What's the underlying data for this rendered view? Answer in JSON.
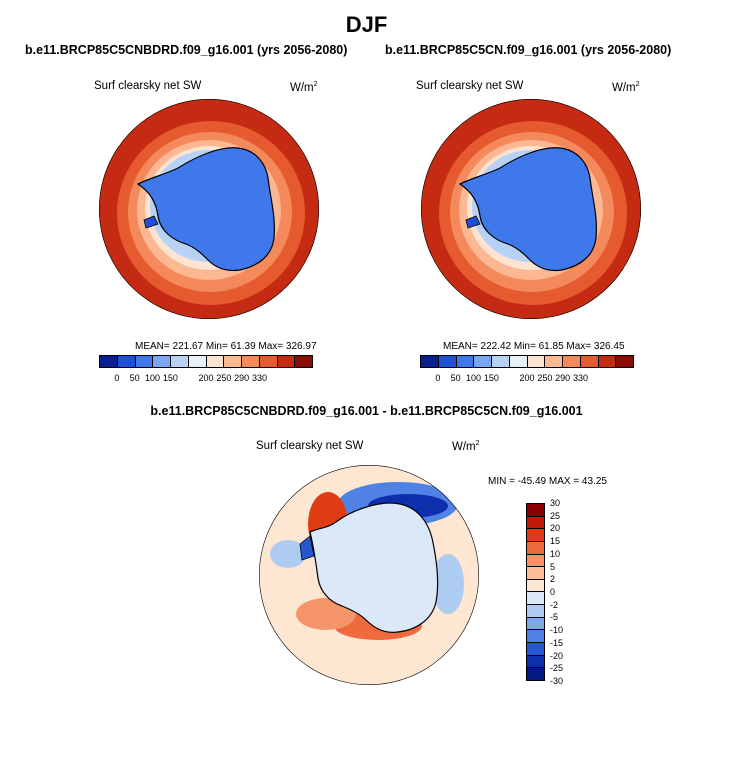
{
  "figure_title": "DJF",
  "chart_data": [
    {
      "type": "heatmap",
      "projection": "south-polar-stereographic",
      "title": "b.e11.BRCP85C5CNBDRD.f09_g16.001 (yrs 2056-2080)",
      "variable": "Surf clearsky net SW",
      "units_base": "W/m",
      "units_exp": "2",
      "stats": {
        "mean": "221.67",
        "min": "61.39",
        "max": "326.97"
      },
      "stats_text": "MEAN= 221.67  Min=  61.39  Max= 326.97",
      "colorbar": {
        "orientation": "horizontal",
        "colors": [
          "#0a1f8f",
          "#1f4fd8",
          "#3f78ea",
          "#7aa6f2",
          "#b8d2f6",
          "#e6f0fb",
          "#fde4d2",
          "#fbb892",
          "#f48a5c",
          "#e65a30",
          "#c42b12",
          "#8a0d05"
        ],
        "tick_labels": [
          "0",
          "50",
          "100",
          "150",
          "200",
          "250",
          "290",
          "330"
        ]
      }
    },
    {
      "type": "heatmap",
      "projection": "south-polar-stereographic",
      "title": "b.e11.BRCP85C5CN.f09_g16.001 (yrs 2056-2080)",
      "variable": "Surf clearsky net SW",
      "units_base": "W/m",
      "units_exp": "2",
      "stats": {
        "mean": "222.42",
        "min": "61.85",
        "max": "326.45"
      },
      "stats_text": "MEAN= 222.42  Min=  61.85  Max= 326.45",
      "colorbar": {
        "orientation": "horizontal",
        "colors": [
          "#0a1f8f",
          "#1f4fd8",
          "#3f78ea",
          "#7aa6f2",
          "#b8d2f6",
          "#e6f0fb",
          "#fde4d2",
          "#fbb892",
          "#f48a5c",
          "#e65a30",
          "#c42b12",
          "#8a0d05"
        ],
        "tick_labels": [
          "0",
          "50",
          "100",
          "150",
          "200",
          "250",
          "290",
          "330"
        ]
      }
    },
    {
      "type": "heatmap",
      "projection": "south-polar-stereographic",
      "title": "b.e11.BRCP85C5CNBDRD.f09_g16.001 - b.e11.BRCP85C5CN.f09_g16.001",
      "variable": "Surf clearsky net SW",
      "units_base": "W/m",
      "units_exp": "2",
      "stats": {
        "min": "-45.49",
        "max": "43.25"
      },
      "stats_text": "MIN = -45.49 MAX =  43.25",
      "colorbar": {
        "orientation": "vertical",
        "colors": [
          "#8a0000",
          "#c01a08",
          "#e03c14",
          "#ef6a3c",
          "#f6946a",
          "#fbbe98",
          "#fde6d2",
          "#dbe8f8",
          "#aecbf2",
          "#7ea8ec",
          "#4f82e4",
          "#2656d2",
          "#0d2fae",
          "#001a80"
        ],
        "tick_labels": [
          "30",
          "25",
          "20",
          "15",
          "10",
          "5",
          "2",
          "0",
          "-2",
          "-5",
          "-10",
          "-15",
          "-20",
          "-25",
          "-30"
        ]
      }
    }
  ]
}
